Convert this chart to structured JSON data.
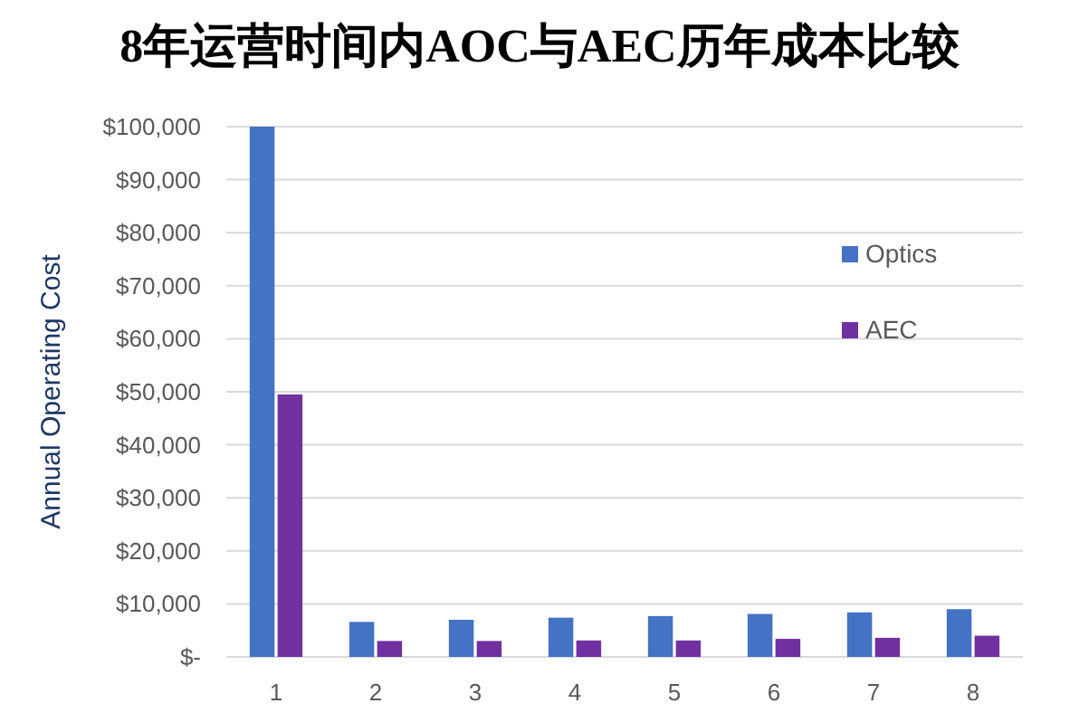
{
  "chart_data": {
    "type": "bar",
    "title": "8年运营时间内AOC与AEC历年成本比较",
    "ylabel": "Annual Operating Cost",
    "categories": [
      "1",
      "2",
      "3",
      "4",
      "5",
      "6",
      "7",
      "8"
    ],
    "series": [
      {
        "name": "Optics",
        "color": "#4472c4",
        "values": [
          100000,
          6600,
          7000,
          7400,
          7700,
          8100,
          8400,
          9000
        ]
      },
      {
        "name": "AEC",
        "color": "#7030a0",
        "values": [
          49500,
          3000,
          3000,
          3100,
          3100,
          3400,
          3600,
          4000
        ]
      }
    ],
    "ylim": [
      0,
      100000
    ],
    "yticks": [
      {
        "value": 0,
        "label": "$-"
      },
      {
        "value": 10000,
        "label": "$10,000"
      },
      {
        "value": 20000,
        "label": "$20,000"
      },
      {
        "value": 30000,
        "label": "$30,000"
      },
      {
        "value": 40000,
        "label": "$40,000"
      },
      {
        "value": 50000,
        "label": "$50,000"
      },
      {
        "value": 60000,
        "label": "$60,000"
      },
      {
        "value": 70000,
        "label": "$70,000"
      },
      {
        "value": 80000,
        "label": "$80,000"
      },
      {
        "value": 90000,
        "label": "$90,000"
      },
      {
        "value": 100000,
        "label": "$100,000"
      }
    ],
    "grid": "y",
    "legend": "right"
  }
}
